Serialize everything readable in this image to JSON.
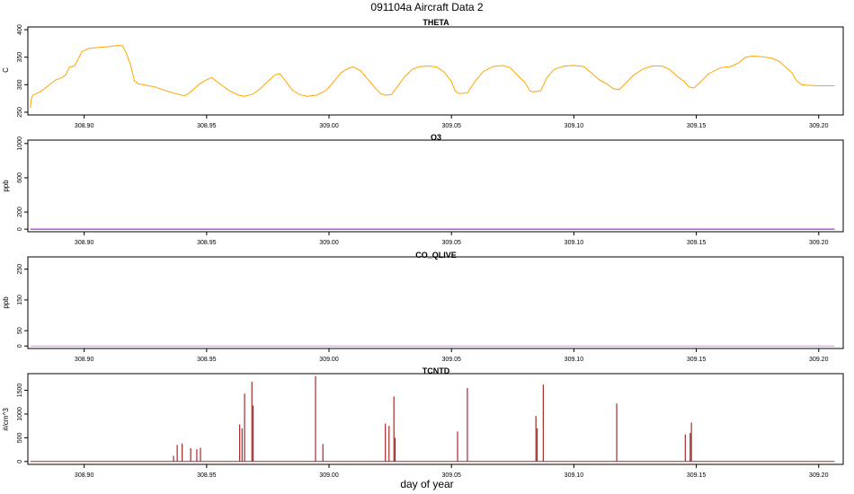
{
  "figure": {
    "title": "091104a   Aircraft Data 2",
    "xlabel": "day of year"
  },
  "chart_data": [
    {
      "type": "line",
      "title": "THETA",
      "ylabel": "C",
      "color": "#ffa500",
      "xlim": [
        308.877,
        309.21
      ],
      "ylim": [
        245,
        405
      ],
      "yticks": [
        250,
        300,
        350,
        400
      ],
      "xticks": [
        "308.90",
        "308.95",
        "309.00",
        "309.05",
        "309.10",
        "309.15",
        "309.20"
      ],
      "series": [
        {
          "name": "THETA",
          "x": [
            308.878,
            308.8785,
            308.879,
            308.882,
            308.885,
            308.888,
            308.891,
            308.8925,
            308.894,
            308.896,
            308.8975,
            308.899,
            308.902,
            308.906,
            308.91,
            308.913,
            308.9155,
            308.917,
            308.919,
            308.9205,
            308.922,
            308.925,
            308.929,
            308.932,
            308.935,
            308.938,
            308.941,
            308.943,
            308.945,
            308.947,
            308.9495,
            308.952,
            308.955,
            308.959,
            308.963,
            308.9655,
            308.969,
            308.972,
            308.975,
            308.978,
            308.98,
            308.9825,
            308.985,
            308.988,
            308.991,
            308.995,
            308.999,
            309.002,
            309.005,
            309.008,
            309.01,
            309.013,
            309.016,
            309.019,
            309.021,
            309.023,
            309.0255,
            309.028,
            309.031,
            309.034,
            309.037,
            309.041,
            309.044,
            309.047,
            309.05,
            309.0515,
            309.053,
            309.0565,
            309.06,
            309.063,
            309.067,
            309.071,
            309.074,
            309.077,
            309.08,
            309.082,
            309.0835,
            309.0865,
            309.089,
            309.092,
            309.096,
            309.1,
            309.104,
            309.107,
            309.11,
            309.114,
            309.116,
            309.1185,
            309.121,
            309.124,
            309.128,
            309.132,
            309.136,
            309.139,
            309.142,
            309.145,
            309.147,
            309.149,
            309.152,
            309.155,
            309.16,
            309.164,
            309.1675,
            309.17,
            309.173,
            309.177,
            309.181,
            309.184,
            309.186,
            309.189,
            309.191,
            309.193,
            309.195,
            309.2,
            309.2065
          ],
          "y": [
            258,
            276,
            281,
            287,
            297,
            308,
            313,
            318,
            332,
            334,
            346,
            360,
            366,
            368,
            369,
            371,
            371,
            360,
            335,
            307,
            302,
            299,
            296,
            291,
            287,
            283,
            280,
            285,
            293,
            301,
            308,
            313,
            303,
            290,
            281,
            279,
            283,
            293,
            306,
            318,
            320,
            305,
            290,
            282,
            279,
            281,
            290,
            306,
            322,
            330,
            332,
            325,
            309,
            293,
            284,
            281,
            282,
            297,
            315,
            328,
            333,
            334,
            332,
            323,
            306,
            289,
            284,
            285,
            308,
            324,
            333,
            335,
            331,
            317,
            304,
            289,
            287,
            289,
            313,
            328,
            334,
            335,
            333,
            322,
            310,
            300,
            293,
            291,
            302,
            316,
            328,
            334,
            334,
            328,
            316,
            306,
            296,
            294,
            306,
            320,
            331,
            333,
            340,
            350,
            352,
            351,
            348,
            342,
            334,
            322,
            307,
            300,
            299,
            298,
            298
          ]
        }
      ]
    },
    {
      "type": "line",
      "title": "O3",
      "ylabel": "ppb",
      "color": "#9400d3",
      "xlim": [
        308.877,
        309.21
      ],
      "ylim": [
        -30,
        1040
      ],
      "yticks": [
        0,
        200,
        600,
        1000
      ],
      "xticks": [
        "308.90",
        "308.95",
        "309.00",
        "309.05",
        "309.10",
        "309.15",
        "309.20"
      ],
      "series": [
        {
          "name": "O3",
          "x": [
            308.878,
            309.2065
          ],
          "y": [
            0,
            0
          ]
        }
      ]
    },
    {
      "type": "line",
      "title": "CO_QLIVE",
      "ylabel": "ppb",
      "color": "#ee82ee",
      "xlim": [
        308.877,
        309.21
      ],
      "ylim": [
        -8,
        290
      ],
      "yticks": [
        0,
        50,
        150,
        250
      ],
      "xticks": [
        "308.90",
        "308.95",
        "309.00",
        "309.05",
        "309.10",
        "309.15",
        "309.20"
      ],
      "series": [
        {
          "name": "CO_QLIVE",
          "x": [
            308.878,
            309.2065
          ],
          "y": [
            0,
            0
          ]
        }
      ]
    },
    {
      "type": "line",
      "title": "TCNTD",
      "ylabel": "#/cm^3",
      "color": "#a52a2a",
      "xlim": [
        308.877,
        309.21
      ],
      "ylim": [
        -60,
        1850
      ],
      "yticks": [
        0,
        500,
        1000,
        1500
      ],
      "xticks": [
        "308.90",
        "308.95",
        "309.00",
        "309.05",
        "309.10",
        "309.15",
        "309.20"
      ],
      "series": [
        {
          "name": "TCNTD",
          "x": [
            308.878,
            309.2065
          ],
          "y": [
            0,
            0
          ]
        }
      ],
      "spikes": [
        {
          "x": 308.9365,
          "y": 120
        },
        {
          "x": 308.938,
          "y": 350
        },
        {
          "x": 308.94,
          "y": 380
        },
        {
          "x": 308.9435,
          "y": 280
        },
        {
          "x": 308.946,
          "y": 260
        },
        {
          "x": 308.9475,
          "y": 290
        },
        {
          "x": 308.9635,
          "y": 780
        },
        {
          "x": 308.9645,
          "y": 700
        },
        {
          "x": 308.9655,
          "y": 1430
        },
        {
          "x": 308.9685,
          "y": 1680
        },
        {
          "x": 308.969,
          "y": 1180
        },
        {
          "x": 308.9945,
          "y": 1800
        },
        {
          "x": 308.9975,
          "y": 370
        },
        {
          "x": 309.023,
          "y": 800
        },
        {
          "x": 309.0245,
          "y": 750
        },
        {
          "x": 309.0265,
          "y": 1370
        },
        {
          "x": 309.027,
          "y": 500
        },
        {
          "x": 309.0525,
          "y": 630
        },
        {
          "x": 309.0565,
          "y": 1550
        },
        {
          "x": 309.0845,
          "y": 960
        },
        {
          "x": 309.085,
          "y": 700
        },
        {
          "x": 309.0875,
          "y": 1620
        },
        {
          "x": 309.1175,
          "y": 1220
        },
        {
          "x": 309.1455,
          "y": 570
        },
        {
          "x": 309.148,
          "y": 820
        },
        {
          "x": 309.1475,
          "y": 600
        }
      ]
    }
  ]
}
